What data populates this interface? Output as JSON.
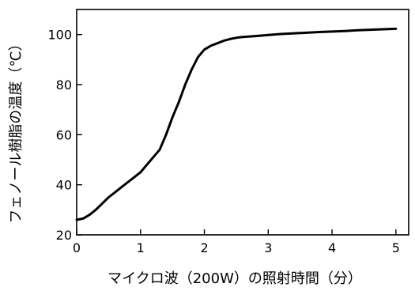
{
  "chart_data": {
    "type": "line",
    "title": "",
    "xlabel": "マイクロ波（200W）の照射時間（分）",
    "ylabel": "フェノール樹脂の温度（℃）",
    "xlim": [
      0,
      5.2
    ],
    "ylim": [
      20,
      110
    ],
    "xticks": [
      0,
      1,
      2,
      3,
      4,
      5
    ],
    "yticks": [
      20,
      40,
      60,
      80,
      100
    ],
    "grid": false,
    "line_color": "#000000",
    "series": [
      {
        "x": [
          0,
          0.1,
          0.2,
          0.3,
          0.4,
          0.5,
          0.6,
          0.7,
          0.8,
          0.9,
          1.0,
          1.1,
          1.2,
          1.3,
          1.4,
          1.5,
          1.6,
          1.7,
          1.8,
          1.9,
          2.0,
          2.1,
          2.2,
          2.3,
          2.4,
          2.5,
          2.6,
          2.8,
          3.0,
          3.2,
          3.5,
          3.8,
          4.0,
          4.2,
          4.4,
          4.6,
          4.8,
          5.0
        ],
        "values": [
          26,
          26.5,
          28,
          30,
          32.5,
          35,
          37,
          39,
          41,
          43,
          45,
          48,
          51,
          54,
          60,
          67,
          73,
          80,
          86,
          91,
          94,
          95.5,
          96.5,
          97.5,
          98.2,
          98.7,
          99.0,
          99.4,
          99.8,
          100.2,
          100.6,
          101.0,
          101.2,
          101.4,
          101.7,
          101.9,
          102.1,
          102.3
        ]
      }
    ]
  }
}
